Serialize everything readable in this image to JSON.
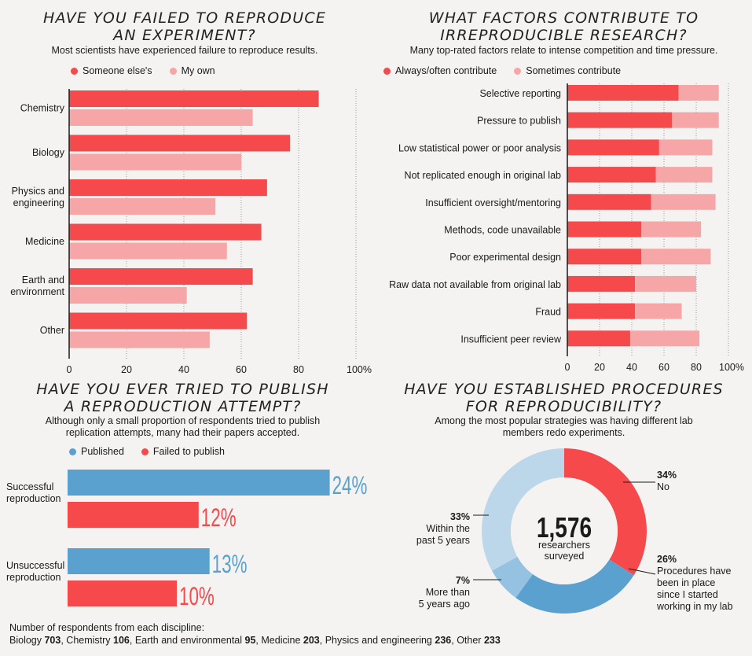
{
  "colors": {
    "red": "#f5494c",
    "pink": "#f7a6a8",
    "blue": "#5aa1cf",
    "lightblue": "#bcd6ea",
    "midblue": "#95c2e0"
  },
  "panel1": {
    "title_line1": "HAVE YOU FAILED TO REPRODUCE",
    "title_line2": "AN EXPERIMENT?",
    "subtitle": "Most scientists have experienced failure to reproduce results.",
    "legend": [
      "Someone else's",
      "My own"
    ]
  },
  "panel2": {
    "title_line1": "WHAT FACTORS CONTRIBUTE TO",
    "title_line2": "IRREPRODUCIBLE RESEARCH?",
    "subtitle": "Many top-rated factors relate to intense competition and time pressure.",
    "legend": [
      "Always/often contribute",
      "Sometimes contribute"
    ]
  },
  "panel3": {
    "title_line1": "HAVE YOU EVER TRIED TO PUBLISH",
    "title_line2": "A REPRODUCTION ATTEMPT?",
    "subtitle_line1": "Although only a small proportion of respondents tried to publish",
    "subtitle_line2": "replication attempts, many had their papers accepted.",
    "legend": [
      "Published",
      "Failed to publish"
    ]
  },
  "panel4": {
    "title_line1": "HAVE YOU ESTABLISHED PROCEDURES",
    "title_line2": "FOR REPRODUCIBILITY?",
    "subtitle_line1": "Among the most popular strategies was having different lab",
    "subtitle_line2": "members redo experiments.",
    "center_number": "1,576",
    "center_label1": "researchers",
    "center_label2": "surveyed"
  },
  "footer": {
    "line1": "Number of respondents from each discipline:",
    "items": [
      {
        "name": "Biology",
        "count": "703"
      },
      {
        "name": "Chemistry",
        "count": "106"
      },
      {
        "name": "Earth and environmental",
        "count": "95"
      },
      {
        "name": "Medicine",
        "count": "203"
      },
      {
        "name": "Physics and engineering",
        "count": "236"
      },
      {
        "name": "Other",
        "count": "233"
      }
    ]
  },
  "chart_data": [
    {
      "type": "bar",
      "orientation": "horizontal",
      "categories": [
        [
          "Chemistry"
        ],
        [
          "Biology"
        ],
        [
          "Physics and",
          "engineering"
        ],
        [
          "Medicine"
        ],
        [
          "Earth and",
          "environment"
        ],
        [
          "Other"
        ]
      ],
      "series": [
        {
          "name": "Someone else's",
          "values": [
            87,
            77,
            69,
            67,
            64,
            62
          ]
        },
        {
          "name": "My own",
          "values": [
            64,
            60,
            51,
            55,
            41,
            49
          ]
        }
      ],
      "xticks": [
        "0",
        "20",
        "40",
        "60",
        "80",
        "100%"
      ],
      "xlim": [
        0,
        100
      ]
    },
    {
      "type": "bar",
      "orientation": "horizontal",
      "stacked": true,
      "categories": [
        "Selective reporting",
        "Pressure to publish",
        "Low statistical power or poor analysis",
        "Not replicated enough in original lab",
        "Insufficient oversight/mentoring",
        "Methods, code unavailable",
        "Poor experimental design",
        "Raw data not available from original lab",
        "Fraud",
        "Insufficient peer review"
      ],
      "series": [
        {
          "name": "Always/often contribute",
          "values": [
            69,
            65,
            57,
            55,
            52,
            46,
            46,
            42,
            42,
            39
          ]
        },
        {
          "name": "Sometimes contribute",
          "values": [
            25,
            29,
            33,
            35,
            40,
            37,
            43,
            38,
            29,
            43
          ]
        }
      ],
      "xticks": [
        "0",
        "20",
        "40",
        "60",
        "80",
        "100%"
      ],
      "xlim": [
        0,
        100
      ]
    },
    {
      "type": "bar",
      "orientation": "horizontal",
      "categories": [
        [
          "Successful",
          "reproduction"
        ],
        [
          "Unsuccessful",
          "reproduction"
        ]
      ],
      "series": [
        {
          "name": "Published",
          "values": [
            24,
            13
          ],
          "labels": [
            "24%",
            "13%"
          ]
        },
        {
          "name": "Failed to publish",
          "values": [
            12,
            10
          ],
          "labels": [
            "12%",
            "10%"
          ]
        }
      ]
    },
    {
      "type": "pie",
      "donut": true,
      "slices": [
        {
          "pct_label": "34%",
          "label": [
            "No"
          ],
          "value": 34
        },
        {
          "pct_label": "26%",
          "label": [
            "Procedures have",
            "been in place",
            "since I started",
            "working in my lab"
          ],
          "value": 26
        },
        {
          "pct_label": "7%",
          "label": [
            "More than",
            "5 years ago"
          ],
          "value": 7
        },
        {
          "pct_label": "33%",
          "label": [
            "Within the",
            "past 5 years"
          ],
          "value": 33
        }
      ]
    }
  ]
}
